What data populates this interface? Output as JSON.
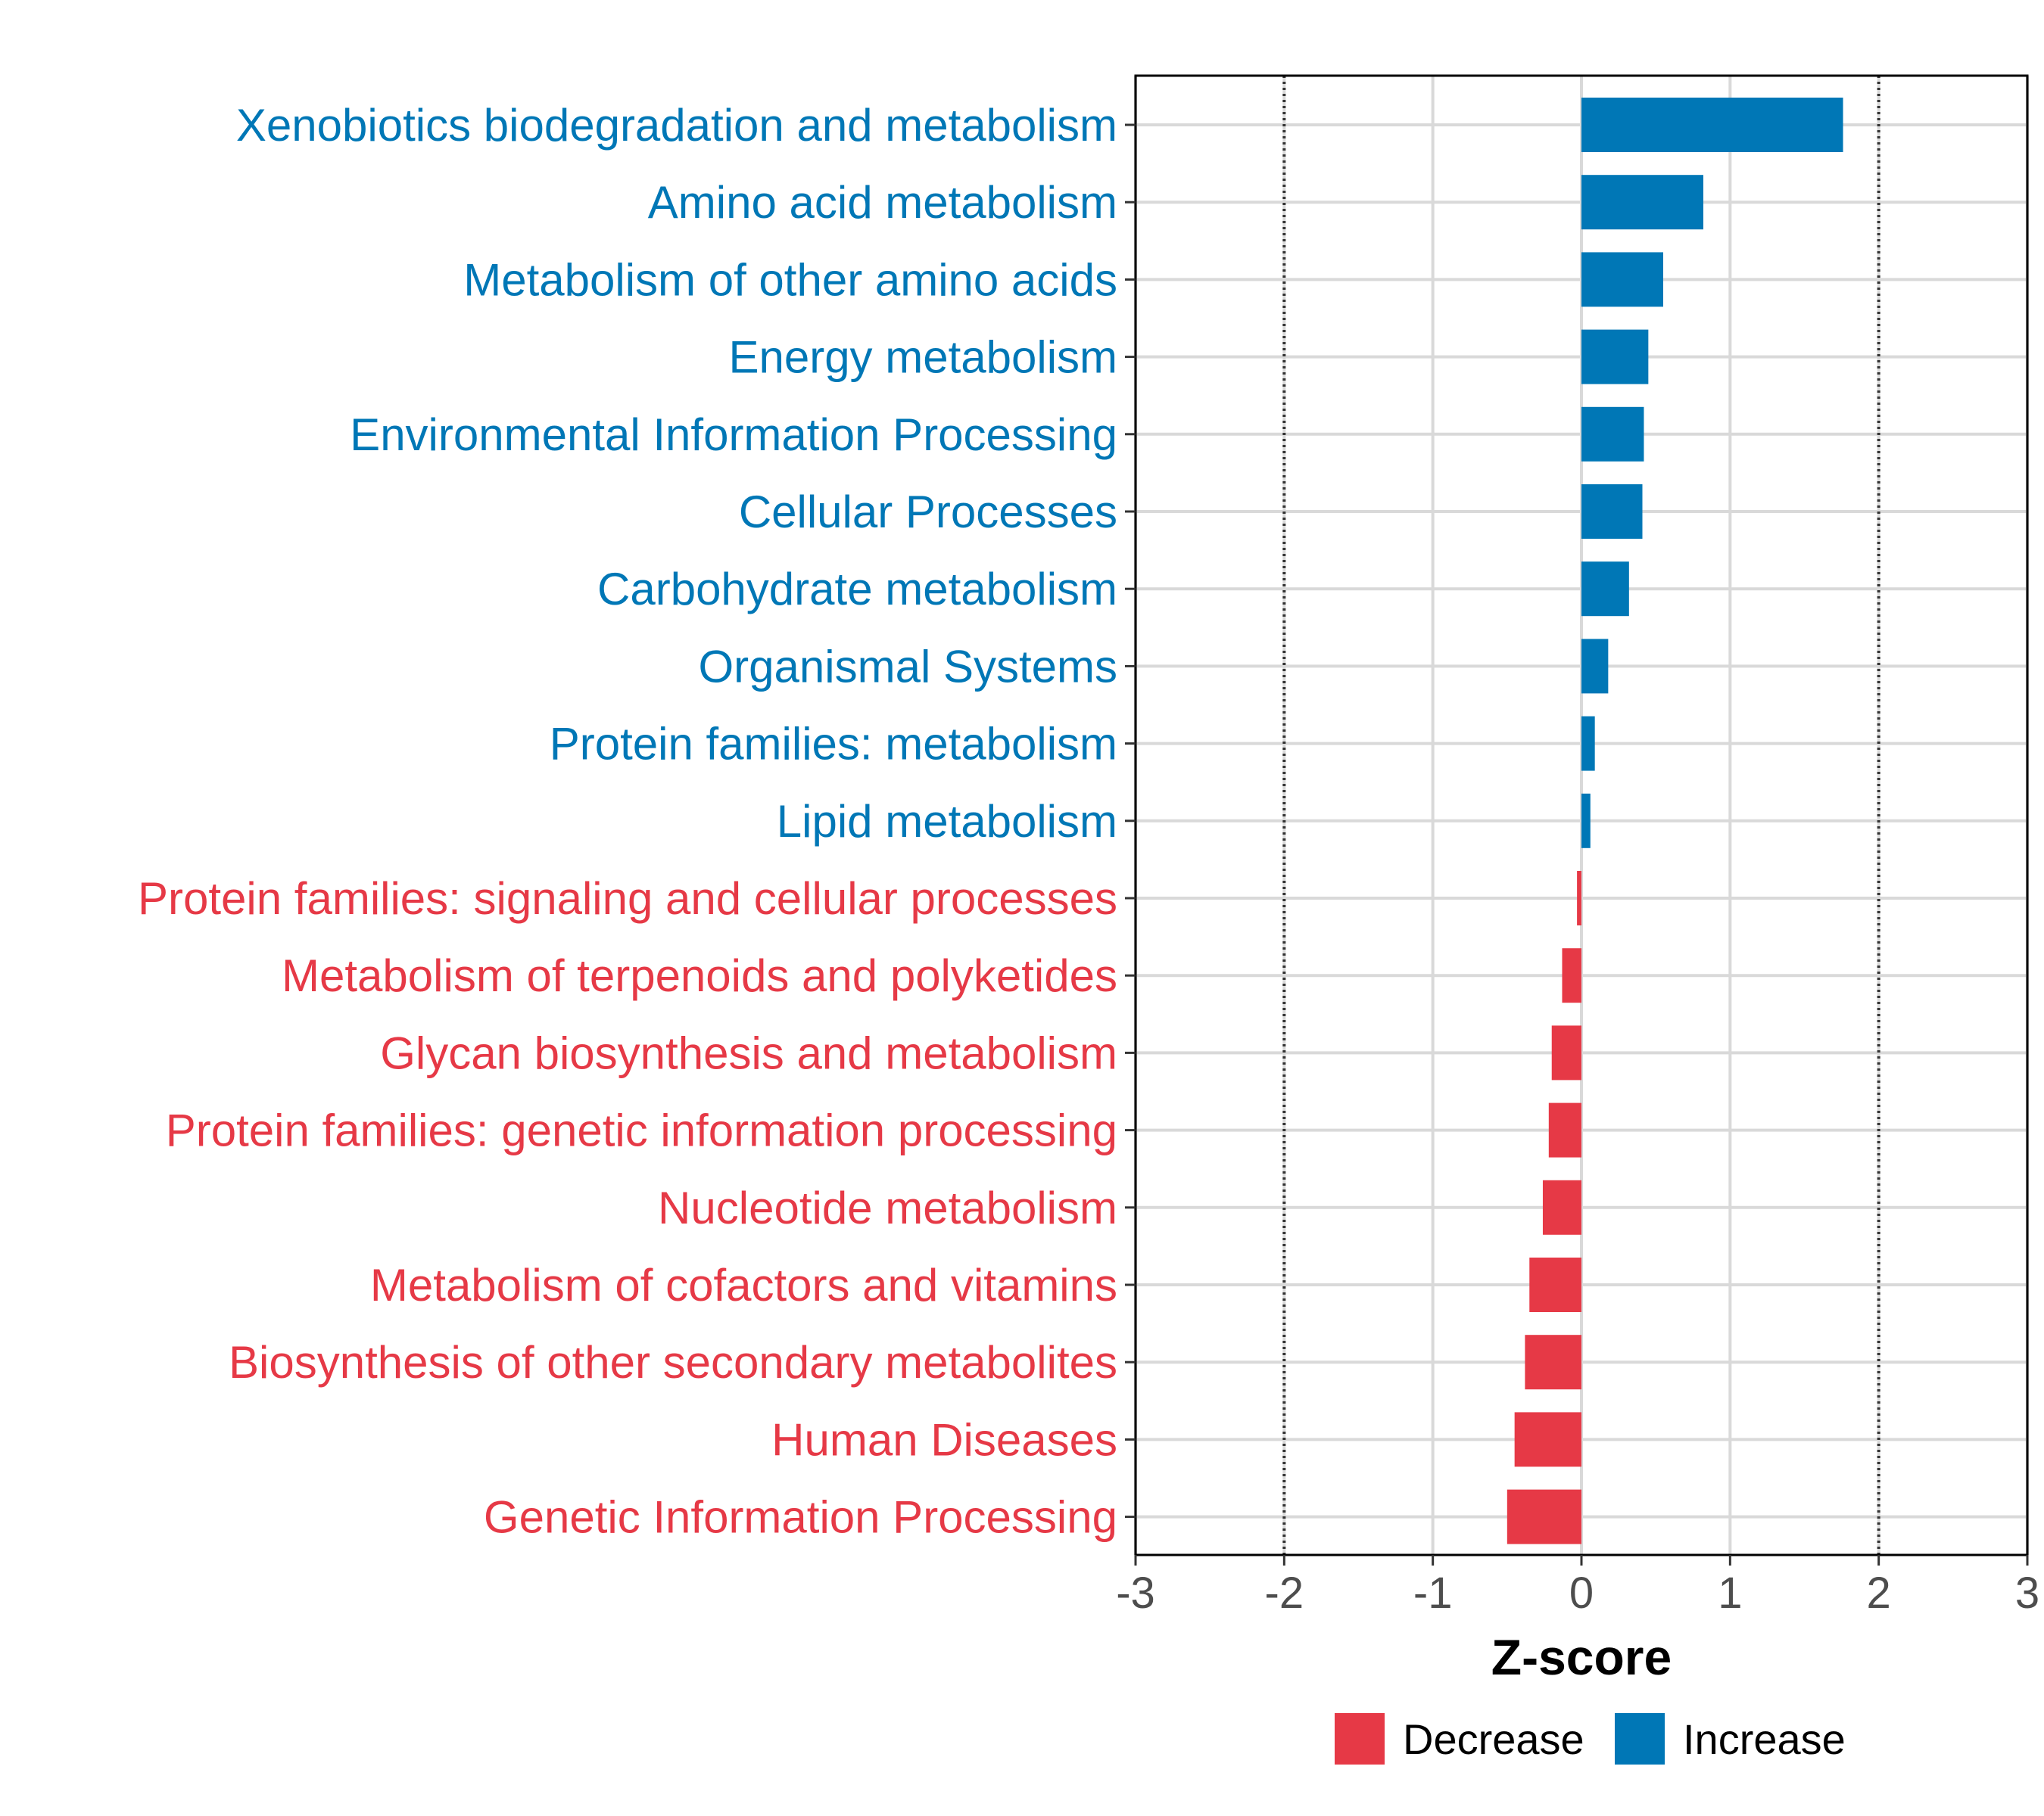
{
  "chart_data": {
    "type": "bar",
    "orientation": "horizontal",
    "categories": [
      "Xenobiotics biodegradation and metabolism",
      "Amino acid metabolism",
      "Metabolism of other amino acids",
      "Energy metabolism",
      "Environmental Information Processing",
      "Cellular Processes",
      "Carbohydrate metabolism",
      "Organismal Systems",
      "Protein families: metabolism",
      "Lipid metabolism",
      "Protein families: signaling and cellular processes",
      "Metabolism of terpenoids and polyketides",
      "Glycan biosynthesis and metabolism",
      "Protein families: genetic information processing",
      "Nucleotide metabolism",
      "Metabolism of cofactors and vitamins",
      "Biosynthesis of other secondary metabolites",
      "Human Diseases",
      "Genetic Information Processing"
    ],
    "values": [
      1.76,
      0.82,
      0.55,
      0.45,
      0.42,
      0.41,
      0.32,
      0.18,
      0.09,
      0.06,
      -0.03,
      -0.13,
      -0.2,
      -0.22,
      -0.26,
      -0.35,
      -0.38,
      -0.45,
      -0.5
    ],
    "xlabel": "Z-score",
    "xlim": [
      -3,
      3
    ],
    "xticks": [
      -3,
      -2,
      -1,
      0,
      1,
      2,
      3
    ],
    "reference_lines": [
      -2,
      2
    ],
    "grid": true,
    "legend": {
      "position": "bottom",
      "items": [
        {
          "label": "Decrease",
          "color": "#E63946"
        },
        {
          "label": "Increase",
          "color": "#0077B6"
        }
      ]
    },
    "colors": {
      "increase": "#0077B6",
      "decrease": "#E63946",
      "grid": "#D9D9D9",
      "panel_border": "#000000",
      "reference_line": "#333333"
    }
  }
}
